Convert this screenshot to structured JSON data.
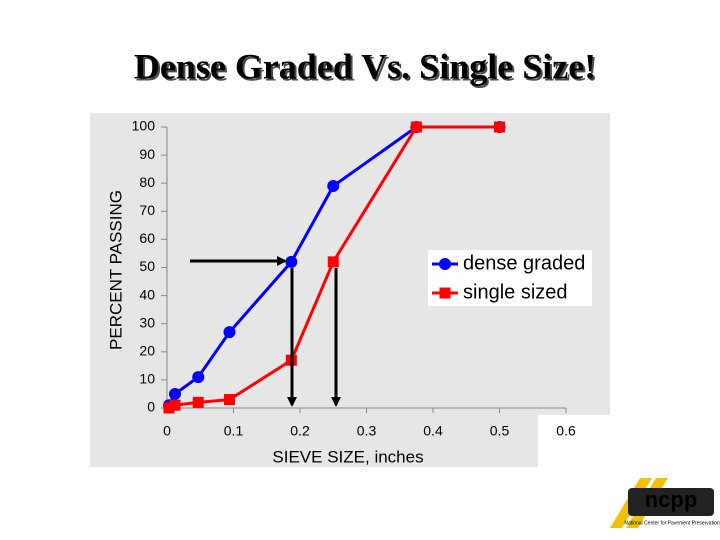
{
  "chart_data": {
    "type": "line",
    "title": "Dense Graded Vs. Single Size!",
    "x_label": "SIEVE SIZE, inches",
    "y_label": "PERCENT PASSING",
    "xlim": [
      0,
      0.6
    ],
    "xticks": [
      0,
      0.1,
      0.2,
      0.3,
      0.4,
      0.5,
      0.6
    ],
    "ylim": [
      0,
      100
    ],
    "yticks": [
      0,
      10,
      20,
      30,
      40,
      50,
      60,
      70,
      80,
      90,
      100
    ],
    "series": [
      {
        "name": "dense graded",
        "color": "#0000ff",
        "marker": "circle",
        "x": [
          0.003,
          0.012,
          0.047,
          0.094,
          0.187,
          0.25,
          0.375,
          0.5
        ],
        "values": [
          1,
          5,
          11,
          27,
          52,
          79,
          100,
          100
        ]
      },
      {
        "name": "single sized",
        "color": "#ff0000",
        "marker": "square",
        "x": [
          0.003,
          0.012,
          0.047,
          0.094,
          0.187,
          0.25,
          0.375,
          0.5
        ],
        "values": [
          0,
          1,
          2,
          3,
          17,
          52,
          100,
          100
        ]
      }
    ],
    "logo": {
      "text": "ncpp",
      "subtitle": "National Center for Pavement Preservation"
    }
  }
}
